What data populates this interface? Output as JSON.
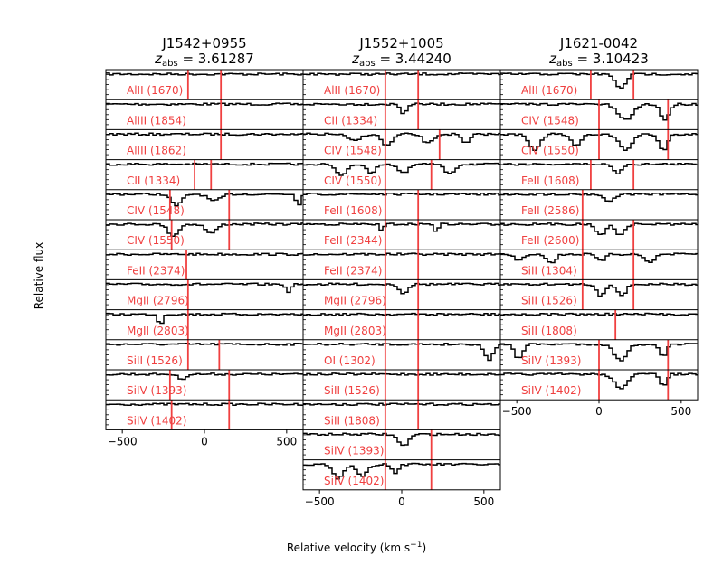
{
  "figure": {
    "ylabel": "Relative flux",
    "xlabel": "Relative velocity (km s$^{-1}$)",
    "xlabel_html": "Relative velocity (km s<sup>−1</sup>)"
  },
  "colors": {
    "spectrum": "#000000",
    "marker": "#f04040",
    "label": "#f04040"
  },
  "chart_data": [
    {
      "type": "line",
      "title": "J1542+0955",
      "subtitle": "z_abs = 3.61287",
      "xlim": [
        -600,
        600
      ],
      "xticks": [
        -500,
        0,
        500
      ],
      "panels": [
        {
          "label": "AlII (1670)",
          "markers": [
            -100,
            100
          ],
          "features": []
        },
        {
          "label": "AlIII (1854)",
          "markers": [
            100
          ],
          "features": []
        },
        {
          "label": "AlIII (1862)",
          "markers": [
            100
          ],
          "features": []
        },
        {
          "label": "CII (1334)",
          "markers": [
            -60,
            40
          ],
          "features": []
        },
        {
          "label": "CIV (1548)",
          "markers": [
            -210,
            150
          ],
          "features": [
            [
              -180,
              0.5,
              50
            ],
            [
              50,
              0.3,
              60
            ],
            [
              560,
              0.5,
              20
            ]
          ]
        },
        {
          "label": "CIV (1550)",
          "markers": [
            -200,
            150
          ],
          "features": [
            [
              -200,
              0.5,
              50
            ],
            [
              30,
              0.4,
              50
            ]
          ]
        },
        {
          "label": "FeII (2374)",
          "markers": [
            -110
          ],
          "features": []
        },
        {
          "label": "MgII (2796)",
          "markers": [
            -100
          ],
          "features": [
            [
              500,
              0.4,
              20
            ]
          ]
        },
        {
          "label": "MgII (2803)",
          "markers": [
            -100
          ],
          "features": [
            [
              -280,
              0.5,
              20
            ]
          ]
        },
        {
          "label": "SiII (1526)",
          "markers": [
            -100,
            90
          ],
          "features": []
        },
        {
          "label": "SiIV (1393)",
          "markers": [
            -210,
            150
          ],
          "features": [
            [
              -150,
              0.2,
              40
            ]
          ]
        },
        {
          "label": "SiIV (1402)",
          "markers": [
            -200,
            150
          ],
          "features": []
        }
      ]
    },
    {
      "type": "line",
      "title": "J1552+1005",
      "subtitle": "z_abs = 3.44240",
      "xlim": [
        -600,
        600
      ],
      "xticks": [
        -500,
        0,
        500
      ],
      "panels": [
        {
          "label": "AlII (1670)",
          "markers": [
            -100,
            100
          ],
          "features": []
        },
        {
          "label": "CII (1334)",
          "markers": [
            -100,
            100
          ],
          "features": [
            [
              0,
              0.4,
              30
            ]
          ]
        },
        {
          "label": "CIV (1548)",
          "markers": [
            -100,
            230
          ],
          "features": [
            [
              -300,
              0.3,
              60
            ],
            [
              -100,
              0.5,
              50
            ],
            [
              150,
              0.4,
              50
            ],
            [
              380,
              0.4,
              40
            ]
          ]
        },
        {
          "label": "CIV (1550)",
          "markers": [
            -100,
            180
          ],
          "features": [
            [
              -380,
              0.5,
              50
            ],
            [
              -200,
              0.4,
              40
            ],
            [
              0,
              0.4,
              50
            ],
            [
              280,
              0.4,
              50
            ]
          ]
        },
        {
          "label": "FeII (1608)",
          "markers": [
            -100,
            100
          ],
          "features": []
        },
        {
          "label": "FeII (2344)",
          "markers": [
            -100,
            100
          ],
          "features": [
            [
              -130,
              0.4,
              15
            ],
            [
              200,
              0.4,
              15
            ]
          ]
        },
        {
          "label": "FeII (2374)",
          "markers": [
            -100,
            100
          ],
          "features": []
        },
        {
          "label": "MgII (2796)",
          "markers": [
            -100,
            100
          ],
          "features": [
            [
              0,
              0.4,
              40
            ]
          ]
        },
        {
          "label": "MgII (2803)",
          "markers": [
            -100,
            100
          ],
          "features": []
        },
        {
          "label": "OI (1302)",
          "markers": [
            -100,
            100
          ],
          "features": [
            [
              520,
              0.7,
              40
            ]
          ]
        },
        {
          "label": "SiII (1526)",
          "markers": [
            -100,
            100
          ],
          "features": []
        },
        {
          "label": "SiII (1808)",
          "markers": [
            -100,
            100
          ],
          "features": []
        },
        {
          "label": "SiIV (1393)",
          "markers": [
            -100,
            180
          ],
          "features": [
            [
              0,
              0.5,
              50
            ]
          ]
        },
        {
          "label": "SiIV (1402)",
          "markers": [
            -100,
            180
          ],
          "features": [
            [
              -400,
              0.6,
              50
            ],
            [
              -250,
              0.5,
              50
            ],
            [
              -50,
              0.4,
              30
            ]
          ]
        }
      ]
    },
    {
      "type": "line",
      "title": "J1621-0042",
      "subtitle": "z_abs = 3.10423",
      "xlim": [
        -600,
        600
      ],
      "xticks": [
        -500,
        0,
        500
      ],
      "panels": [
        {
          "label": "AlII (1670)",
          "markers": [
            -50,
            210
          ],
          "features": [
            [
              120,
              0.6,
              50
            ]
          ]
        },
        {
          "label": "CIV (1548)",
          "markers": [
            0,
            420
          ],
          "features": [
            [
              150,
              0.7,
              70
            ],
            [
              390,
              0.7,
              40
            ]
          ]
        },
        {
          "label": "CIV (1550)",
          "markers": [
            0,
            420
          ],
          "features": [
            [
              -400,
              0.7,
              50
            ],
            [
              -150,
              0.5,
              50
            ],
            [
              150,
              0.7,
              60
            ],
            [
              380,
              0.7,
              40
            ]
          ]
        },
        {
          "label": "FeII (1608)",
          "markers": [
            -50,
            210
          ],
          "features": [
            [
              100,
              0.4,
              40
            ]
          ]
        },
        {
          "label": "FeII (2586)",
          "markers": [
            -100
          ],
          "features": [
            [
              50,
              0.3,
              50
            ]
          ]
        },
        {
          "label": "FeII (2600)",
          "markers": [
            -100,
            210
          ],
          "features": [
            [
              0,
              0.5,
              40
            ],
            [
              120,
              0.5,
              40
            ]
          ]
        },
        {
          "label": "SiII (1304)",
          "markers": [
            -100,
            210
          ],
          "features": [
            [
              -500,
              0.3,
              40
            ],
            [
              -300,
              0.4,
              40
            ],
            [
              0,
              0.3,
              40
            ],
            [
              300,
              0.4,
              40
            ]
          ]
        },
        {
          "label": "SiII (1526)",
          "markers": [
            -100,
            210
          ],
          "features": [
            [
              0,
              0.5,
              40
            ],
            [
              130,
              0.5,
              40
            ]
          ]
        },
        {
          "label": "SiII (1808)",
          "markers": [
            100
          ],
          "features": []
        },
        {
          "label": "SiIV (1393)",
          "markers": [
            0,
            420
          ],
          "features": [
            [
              -500,
              0.6,
              40
            ],
            [
              120,
              0.7,
              60
            ],
            [
              380,
              0.6,
              30
            ]
          ]
        },
        {
          "label": "SiIV (1402)",
          "markers": [
            0,
            420
          ],
          "features": [
            [
              120,
              0.6,
              60
            ],
            [
              380,
              0.5,
              30
            ]
          ]
        }
      ]
    }
  ]
}
